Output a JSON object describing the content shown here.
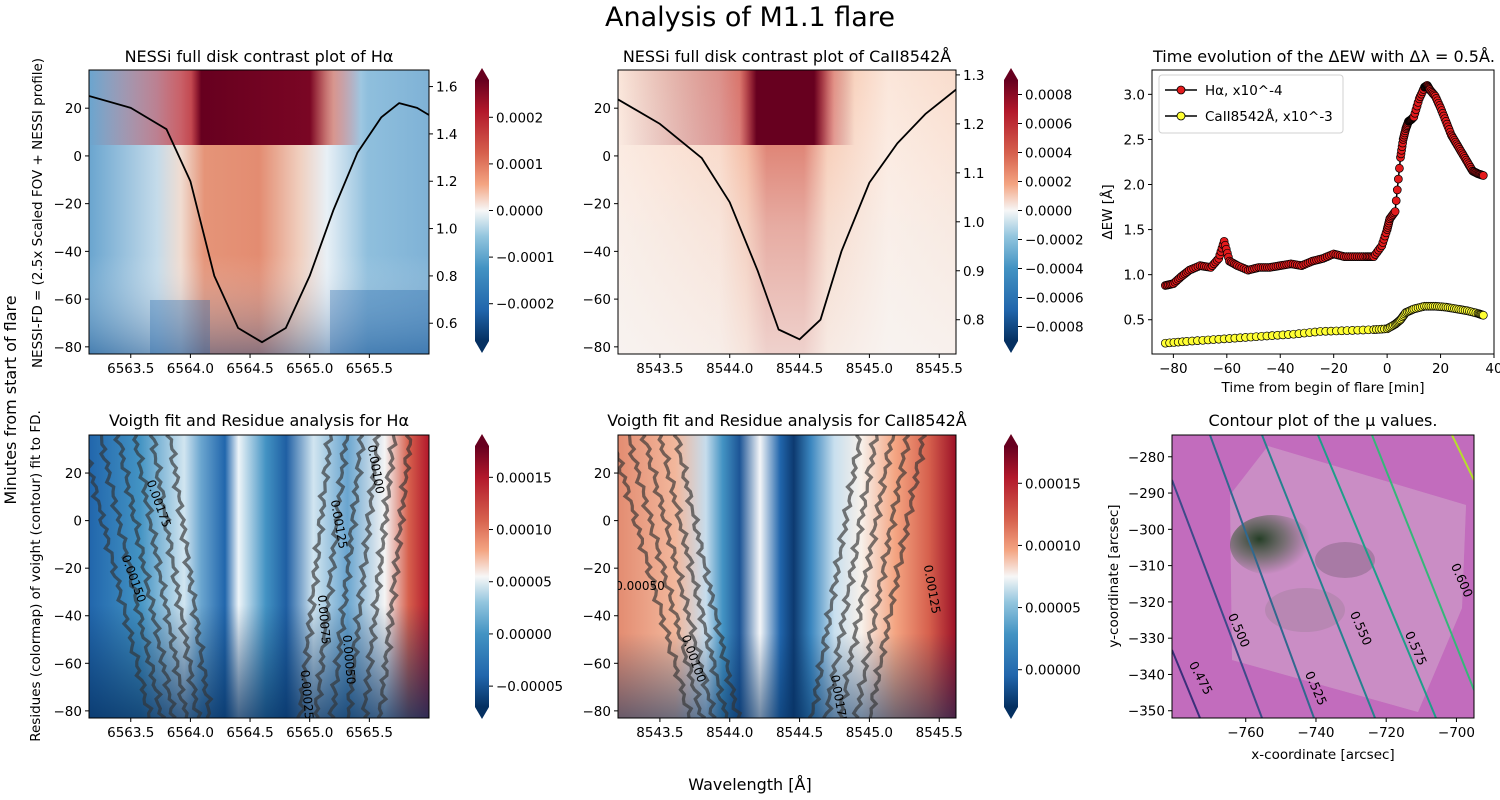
{
  "figure": {
    "title": "Analysis of M1.1 flare",
    "ylabel_main": "Minutes from start of flare",
    "xlabel_main": "Wavelength [Å]"
  },
  "colors": {
    "neg": "#053061",
    "mid": "#f7f7f7",
    "pos": "#67001f",
    "line": "#000000",
    "ha_marker": "#e31a1c",
    "ca_marker": "#ffff33",
    "mu_bg": "#c26cbd"
  },
  "chart_data": [
    {
      "id": "p1",
      "type": "heatmap",
      "title": "NESSi full disk contrast plot of Hα",
      "ylabel": "NESSI-FD = (2.5x Scaled FOV + NESSI profile)",
      "xlim": [
        6563.15,
        6566.0
      ],
      "ylim": [
        -83,
        36
      ],
      "xticks": [
        "6563.5",
        "6564.0",
        "6564.5",
        "6565.0",
        "6565.5"
      ],
      "yticks": [
        "20",
        "0",
        "−20",
        "−40",
        "−60",
        "−80"
      ],
      "secondary_y": {
        "ylim": [
          0.47,
          1.67
        ],
        "ticks": [
          "1.6",
          "1.4",
          "1.2",
          "1.0",
          "0.8",
          "0.6"
        ]
      },
      "colorbar": {
        "ticks": [
          "0.0002",
          "0.0001",
          "0.0000",
          "−0.0001",
          "−0.0002"
        ],
        "vmin": -0.00028,
        "vmax": 0.00028
      },
      "profile_line": {
        "x": [
          6563.15,
          6563.5,
          6563.8,
          6564.0,
          6564.2,
          6564.4,
          6564.6,
          6564.8,
          6565.0,
          6565.2,
          6565.4,
          6565.6,
          6565.75,
          6565.9,
          6566.0
        ],
        "y": [
          1.56,
          1.51,
          1.42,
          1.2,
          0.8,
          0.58,
          0.52,
          0.58,
          0.8,
          1.08,
          1.32,
          1.47,
          1.53,
          1.51,
          1.48
        ]
      }
    },
    {
      "id": "p2",
      "type": "heatmap",
      "title": "NESSi full disk contrast plot of CaII8542Å",
      "xlim": [
        8543.2,
        8545.62
      ],
      "ylim": [
        -83,
        36
      ],
      "xticks": [
        "8543.5",
        "8544.0",
        "8544.5",
        "8545.0",
        "8545.5"
      ],
      "yticks": [
        "20",
        "0",
        "−20",
        "−40",
        "−60",
        "−80"
      ],
      "secondary_y": {
        "ylim": [
          0.73,
          1.31
        ],
        "ticks": [
          "1.3",
          "1.2",
          "1.1",
          "1.0",
          "0.9",
          "0.8"
        ]
      },
      "colorbar": {
        "ticks": [
          "0.0008",
          "0.0006",
          "0.0004",
          "0.0002",
          "0.0000",
          "−0.0002",
          "−0.0004",
          "−0.0006",
          "−0.0008"
        ],
        "vmin": -0.0009,
        "vmax": 0.0009
      },
      "profile_line": {
        "x": [
          8543.2,
          8543.5,
          8543.8,
          8544.0,
          8544.2,
          8544.35,
          8544.5,
          8544.65,
          8544.8,
          8545.0,
          8545.2,
          8545.4,
          8545.62
        ],
        "y": [
          1.25,
          1.2,
          1.13,
          1.04,
          0.9,
          0.78,
          0.76,
          0.8,
          0.94,
          1.08,
          1.16,
          1.22,
          1.27
        ]
      }
    },
    {
      "id": "p3",
      "type": "line",
      "title": "Time evolution of the ΔEW with Δλ = 0.5Å.",
      "xlabel": "Time from begin of flare [min]",
      "ylabel": "ΔEW [Å]",
      "xlim": [
        -88,
        40
      ],
      "ylim": [
        0.12,
        3.27
      ],
      "xticks": [
        "−80",
        "−60",
        "−40",
        "−20",
        "0",
        "20",
        "40"
      ],
      "yticks": [
        "3.0",
        "2.5",
        "2.0",
        "1.5",
        "1.0",
        "0.5"
      ],
      "legend": [
        "Hα, x10^-4",
        "CaII8542Å, x10^-3"
      ],
      "series": [
        {
          "name": "Hα, x10^-4",
          "x": [
            -83,
            -80,
            -77,
            -74,
            -70,
            -66,
            -63,
            -61,
            -59,
            -56,
            -52,
            -48,
            -44,
            -40,
            -36,
            -32,
            -28,
            -24,
            -20,
            -16,
            -12,
            -8,
            -5,
            -2,
            0,
            1,
            3,
            5,
            6,
            7,
            8,
            9,
            10,
            12,
            14,
            15,
            16,
            18,
            20,
            22,
            24,
            26,
            28,
            30,
            32,
            34,
            36
          ],
          "y": [
            0.88,
            0.9,
            0.98,
            1.05,
            1.1,
            1.08,
            1.18,
            1.37,
            1.15,
            1.1,
            1.05,
            1.08,
            1.08,
            1.1,
            1.12,
            1.1,
            1.15,
            1.18,
            1.23,
            1.2,
            1.2,
            1.2,
            1.2,
            1.32,
            1.5,
            1.62,
            1.7,
            2.3,
            2.5,
            2.62,
            2.7,
            2.72,
            2.75,
            2.95,
            3.08,
            3.1,
            3.05,
            2.98,
            2.85,
            2.7,
            2.55,
            2.45,
            2.35,
            2.25,
            2.15,
            2.12,
            2.1
          ]
        },
        {
          "name": "CaII8542Å, x10^-3",
          "x": [
            -83,
            -75,
            -65,
            -55,
            -45,
            -35,
            -25,
            -15,
            -5,
            0,
            3,
            5,
            7,
            10,
            14,
            18,
            22,
            26,
            30,
            34,
            36
          ],
          "y": [
            0.24,
            0.26,
            0.28,
            0.3,
            0.32,
            0.34,
            0.37,
            0.38,
            0.39,
            0.4,
            0.45,
            0.5,
            0.58,
            0.62,
            0.65,
            0.65,
            0.64,
            0.62,
            0.6,
            0.57,
            0.55
          ]
        }
      ]
    },
    {
      "id": "p4",
      "type": "heatmap",
      "title": "Voigth fit and Residue analysis for Hα",
      "ylabel": "Residues (colormap) of voight (contour) fit to FD.",
      "xlim": [
        6563.15,
        6566.0
      ],
      "ylim": [
        -83,
        36
      ],
      "xticks": [
        "6563.5",
        "6564.0",
        "6564.5",
        "6565.0",
        "6565.5"
      ],
      "yticks": [
        "20",
        "0",
        "−20",
        "−40",
        "−60",
        "−80"
      ],
      "colorbar": {
        "ticks": [
          "0.00015",
          "0.00010",
          "0.00005",
          "0.00000",
          "−0.00005"
        ],
        "vmin": -7e-05,
        "vmax": 0.00018
      },
      "contour_labels": [
        "0.00175",
        "0.00150",
        "0.00125",
        "0.00100",
        "0.00075",
        "0.00050",
        "0.00025"
      ]
    },
    {
      "id": "p5",
      "type": "heatmap",
      "title": "Voigth fit and Residue analysis for CaII8542Å",
      "xlim": [
        8543.2,
        8545.62
      ],
      "ylim": [
        -83,
        36
      ],
      "xticks": [
        "8543.5",
        "8544.0",
        "8544.5",
        "8545.0",
        "8545.5"
      ],
      "yticks": [
        "20",
        "0",
        "−20",
        "−40",
        "−60",
        "−80"
      ],
      "colorbar": {
        "ticks": [
          "0.00015",
          "0.00010",
          "0.00005",
          "0.00000"
        ],
        "vmin": -3e-05,
        "vmax": 0.00018
      },
      "contour_labels": [
        "0.00050",
        "0.00100",
        "0.00175",
        "0.00125"
      ]
    },
    {
      "id": "p6",
      "type": "heatmap",
      "title": "Contour plot of the μ values.",
      "xlabel": "x-coordinate [arcsec]",
      "ylabel": "y-coordinate [arcsec]",
      "xlim": [
        -781,
        -695
      ],
      "ylim": [
        -352,
        -274
      ],
      "xticks": [
        "−760",
        "−740",
        "−720",
        "−700"
      ],
      "yticks": [
        "−280",
        "−290",
        "−300",
        "−310",
        "−320",
        "−330",
        "−340",
        "−350"
      ],
      "contour_labels": [
        "0.475",
        "0.500",
        "0.525",
        "0.550",
        "0.575",
        "0.600"
      ]
    }
  ]
}
